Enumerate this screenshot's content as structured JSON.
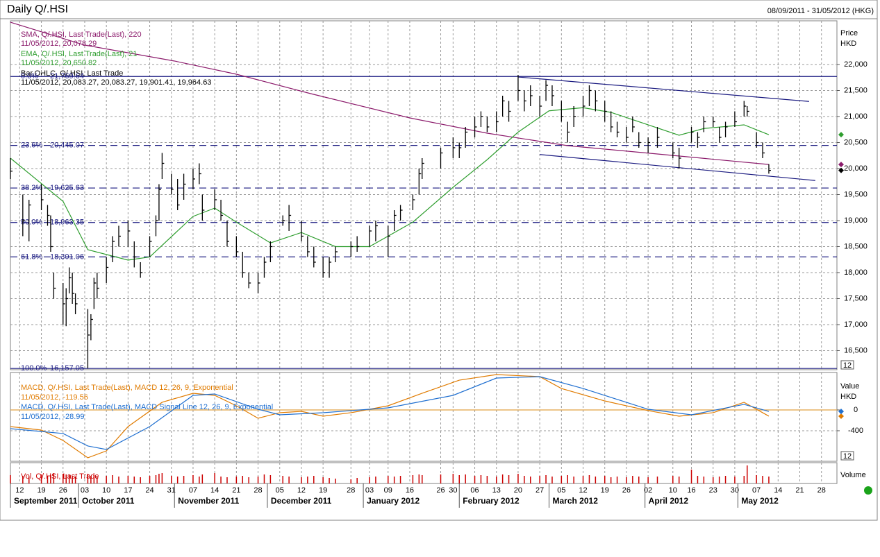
{
  "chart_data": [
    {
      "type": "ohlc",
      "title": "Daily Q/.HSI",
      "date_range": "08/09/2011 - 31/05/2012 (HKG)",
      "y_label": "Price",
      "y_unit": "HKD",
      "zoom_label": "12",
      "grid": true,
      "color": "#000000",
      "xlim": [
        "2011-09-09",
        "2012-06-02"
      ],
      "ylim": [
        16133,
        22840
      ],
      "yticks": [
        {
          "value": 16500,
          "label": "16,500"
        },
        {
          "value": 17000,
          "label": "17,000"
        },
        {
          "value": 17500,
          "label": "17,500"
        },
        {
          "value": 18000,
          "label": "18,000"
        },
        {
          "value": 18500,
          "label": "18,500"
        },
        {
          "value": 19000,
          "label": "19,000"
        },
        {
          "value": 19500,
          "label": "19,500"
        },
        {
          "value": 20000,
          "label": "20,000"
        },
        {
          "value": 20500,
          "label": "20,500"
        },
        {
          "value": 21000,
          "label": "21,000"
        },
        {
          "value": 21500,
          "label": "21,500"
        },
        {
          "value": 22000,
          "label": "22,000"
        }
      ],
      "xticks": [
        {
          "value": "2011-09-12",
          "label": "12"
        },
        {
          "value": "2011-09-19",
          "label": "19"
        },
        {
          "value": "2011-09-26",
          "label": "26"
        },
        {
          "value": "2011-10-03",
          "label": "03"
        },
        {
          "value": "2011-10-10",
          "label": "10"
        },
        {
          "value": "2011-10-17",
          "label": "17"
        },
        {
          "value": "2011-10-24",
          "label": "24"
        },
        {
          "value": "2011-10-31",
          "label": "31"
        },
        {
          "value": "2011-11-07",
          "label": "07"
        },
        {
          "value": "2011-11-14",
          "label": "14"
        },
        {
          "value": "2011-11-21",
          "label": "21"
        },
        {
          "value": "2011-11-28",
          "label": "28"
        },
        {
          "value": "2011-12-05",
          "label": "05"
        },
        {
          "value": "2011-12-12",
          "label": "12"
        },
        {
          "value": "2011-12-19",
          "label": "19"
        },
        {
          "value": "2011-12-28",
          "label": "28"
        },
        {
          "value": "2012-01-03",
          "label": "03"
        },
        {
          "value": "2012-01-09",
          "label": "09"
        },
        {
          "value": "2012-01-16",
          "label": "16"
        },
        {
          "value": "2012-01-26",
          "label": "26"
        },
        {
          "value": "2012-01-30",
          "label": "30"
        },
        {
          "value": "2012-02-06",
          "label": "06"
        },
        {
          "value": "2012-02-13",
          "label": "13"
        },
        {
          "value": "2012-02-20",
          "label": "20"
        },
        {
          "value": "2012-02-27",
          "label": "27"
        },
        {
          "value": "2012-03-05",
          "label": "05"
        },
        {
          "value": "2012-03-12",
          "label": "12"
        },
        {
          "value": "2012-03-19",
          "label": "19"
        },
        {
          "value": "2012-03-26",
          "label": "26"
        },
        {
          "value": "2012-04-02",
          "label": "02"
        },
        {
          "value": "2012-04-10",
          "label": "10"
        },
        {
          "value": "2012-04-16",
          "label": "16"
        },
        {
          "value": "2012-04-23",
          "label": "23"
        },
        {
          "value": "2012-04-30",
          "label": "30"
        },
        {
          "value": "2012-05-07",
          "label": "07"
        },
        {
          "value": "2012-05-14",
          "label": "14"
        },
        {
          "value": "2012-05-21",
          "label": "21"
        },
        {
          "value": "2012-05-28",
          "label": "28"
        }
      ],
      "months": [
        {
          "value": "2011-09",
          "label": "September 2011"
        },
        {
          "value": "2011-10",
          "label": "October 2011"
        },
        {
          "value": "2011-11",
          "label": "November 2011"
        },
        {
          "value": "2011-12",
          "label": "December 2011"
        },
        {
          "value": "2012-01",
          "label": "January 2012"
        },
        {
          "value": "2012-02",
          "label": "February 2012"
        },
        {
          "value": "2012-03",
          "label": "March 2012"
        },
        {
          "value": "2012-04",
          "label": "April 2012"
        },
        {
          "value": "2012-05",
          "label": "May 2012"
        }
      ],
      "bar_legend": {
        "name": "Bar,OHLC, Q/.HSI, Last Trade",
        "readout": "11/05/2012, 20,083.27, 20,083.27, 19,901.41, 19,964.63"
      },
      "x": [
        "2011-09-09",
        "2011-09-13",
        "2011-09-15",
        "2011-09-19",
        "2011-09-21",
        "2011-09-22",
        "2011-09-23",
        "2011-09-26",
        "2011-09-27",
        "2011-09-28",
        "2011-09-29",
        "2011-09-30",
        "2011-10-04",
        "2011-10-05",
        "2011-10-06",
        "2011-10-07",
        "2011-10-10",
        "2011-10-12",
        "2011-10-14",
        "2011-10-17",
        "2011-10-19",
        "2011-10-21",
        "2011-10-24",
        "2011-10-26",
        "2011-10-27",
        "2011-10-28",
        "2011-10-31",
        "2011-11-02",
        "2011-11-04",
        "2011-11-07",
        "2011-11-09",
        "2011-11-10",
        "2011-11-14",
        "2011-11-16",
        "2011-11-18",
        "2011-11-21",
        "2011-11-23",
        "2011-11-25",
        "2011-11-28",
        "2011-11-30",
        "2011-12-02",
        "2011-12-06",
        "2011-12-08",
        "2011-12-12",
        "2011-12-14",
        "2011-12-16",
        "2011-12-19",
        "2011-12-21",
        "2011-12-23",
        "2011-12-28",
        "2011-12-30",
        "2012-01-03",
        "2012-01-05",
        "2012-01-09",
        "2012-01-11",
        "2012-01-13",
        "2012-01-17",
        "2012-01-19",
        "2012-01-20",
        "2012-01-26",
        "2012-01-30",
        "2012-02-01",
        "2012-02-03",
        "2012-02-06",
        "2012-02-08",
        "2012-02-10",
        "2012-02-13",
        "2012-02-15",
        "2012-02-17",
        "2012-02-20",
        "2012-02-22",
        "2012-02-24",
        "2012-02-27",
        "2012-02-29",
        "2012-03-02",
        "2012-03-05",
        "2012-03-07",
        "2012-03-09",
        "2012-03-12",
        "2012-03-14",
        "2012-03-16",
        "2012-03-19",
        "2012-03-21",
        "2012-03-23",
        "2012-03-26",
        "2012-03-28",
        "2012-03-30",
        "2012-04-02",
        "2012-04-05",
        "2012-04-10",
        "2012-04-12",
        "2012-04-16",
        "2012-04-18",
        "2012-04-20",
        "2012-04-23",
        "2012-04-25",
        "2012-04-27",
        "2012-04-30",
        "2012-05-03",
        "2012-05-04",
        "2012-05-07",
        "2012-05-09",
        "2012-05-11"
      ],
      "high": [
        20200,
        19500,
        19400,
        19700,
        19300,
        19100,
        18000,
        17800,
        17700,
        18100,
        18000,
        17600,
        17300,
        17200,
        17900,
        18000,
        18300,
        18700,
        18900,
        19000,
        18600,
        18200,
        18700,
        19100,
        19700,
        20300,
        19900,
        19800,
        19900,
        20000,
        20100,
        19500,
        19600,
        19400,
        19000,
        18700,
        18400,
        18000,
        18000,
        18300,
        18600,
        19100,
        19300,
        19000,
        18700,
        18500,
        18300,
        18300,
        18500,
        18600,
        18700,
        18900,
        19000,
        18900,
        19200,
        19300,
        19500,
        20000,
        20200,
        20400,
        20600,
        20500,
        20800,
        21000,
        21100,
        21000,
        21100,
        21400,
        21300,
        21800,
        21500,
        21600,
        21400,
        21700,
        21600,
        21300,
        20900,
        21200,
        21400,
        21600,
        21500,
        21300,
        21100,
        20900,
        20800,
        21000,
        20700,
        20600,
        20800,
        20500,
        20400,
        20800,
        20700,
        21000,
        21000,
        20800,
        20900,
        21100,
        21300,
        21200,
        20700,
        20500,
        20083.27
      ],
      "low": [
        19800,
        18700,
        18600,
        19200,
        18900,
        18400,
        17500,
        17000,
        16970,
        17600,
        17400,
        17200,
        16157,
        16700,
        17300,
        17500,
        17800,
        18200,
        18500,
        18500,
        18100,
        17900,
        18300,
        18700,
        19000,
        19800,
        19500,
        19200,
        19400,
        19600,
        19700,
        19000,
        19200,
        19000,
        18500,
        18300,
        17900,
        17700,
        17600,
        17900,
        18200,
        18900,
        18800,
        18600,
        18300,
        18100,
        17900,
        17900,
        18200,
        18300,
        18400,
        18500,
        18600,
        18300,
        18800,
        19000,
        19200,
        19500,
        19800,
        20000,
        20200,
        20200,
        20400,
        20600,
        20800,
        20700,
        20700,
        21000,
        20900,
        21300,
        21100,
        21200,
        21000,
        21300,
        21200,
        20900,
        20500,
        20800,
        21000,
        21200,
        21100,
        20900,
        20700,
        20600,
        20500,
        20700,
        20400,
        20300,
        20400,
        20200,
        20000,
        20500,
        20400,
        20700,
        20800,
        20500,
        20600,
        20800,
        21000,
        21000,
        20400,
        20200,
        19901.41
      ],
      "close": [
        19950,
        19000,
        19300,
        19400,
        19100,
        18500,
        17700,
        17400,
        17500,
        17900,
        17600,
        17400,
        16800,
        17100,
        17800,
        17700,
        18100,
        18600,
        18700,
        18800,
        18300,
        18000,
        18600,
        19000,
        19600,
        20100,
        19600,
        19300,
        19700,
        19800,
        19900,
        19200,
        19400,
        19100,
        18600,
        18400,
        18000,
        17800,
        17800,
        18200,
        18500,
        19000,
        19100,
        18700,
        18400,
        18200,
        18000,
        18200,
        18400,
        18500,
        18500,
        18800,
        18900,
        18700,
        19100,
        19200,
        19400,
        19900,
        20100,
        20300,
        20400,
        20400,
        20700,
        20800,
        21000,
        20800,
        20900,
        21300,
        21100,
        21500,
        21300,
        21400,
        21200,
        21600,
        21400,
        21000,
        20700,
        21000,
        21200,
        21500,
        21300,
        21100,
        20800,
        20700,
        20600,
        20800,
        20500,
        20500,
        20600,
        20300,
        20200,
        20700,
        20600,
        20900,
        20900,
        20600,
        20800,
        20900,
        21200,
        21100,
        20500,
        20300,
        19964.63
      ],
      "lines": [
        {
          "name": "SMA, Q/.HSI, Last Trade(Last), 220",
          "readout": "11/05/2012, 20,078.29",
          "color": "#8b1a6b",
          "x": [
            "2011-09-09",
            "2011-10-03",
            "2011-11-01",
            "2011-11-21",
            "2011-12-15",
            "2012-01-16",
            "2012-02-10",
            "2012-03-07",
            "2012-04-05",
            "2012-05-11"
          ],
          "values": [
            22813,
            22373,
            22067,
            21813,
            21440,
            20973,
            20680,
            20440,
            20280,
            20078.29
          ]
        },
        {
          "name": "EMA, Q/.HSI, Last Trade(Last), 21",
          "readout": "11/05/2012, 20,650.82",
          "color": "#2f9e2f",
          "x": [
            "2011-09-09",
            "2011-09-26",
            "2011-10-04",
            "2011-10-17",
            "2011-10-24",
            "2011-11-07",
            "2011-11-14",
            "2011-11-21",
            "2011-12-02",
            "2011-12-12",
            "2011-12-23",
            "2012-01-03",
            "2012-01-17",
            "2012-01-30",
            "2012-02-10",
            "2012-02-20",
            "2012-03-01",
            "2012-03-12",
            "2012-03-21",
            "2012-04-02",
            "2012-04-12",
            "2012-04-20",
            "2012-05-03",
            "2012-05-11"
          ],
          "values": [
            20200,
            19370,
            18440,
            18240,
            18300,
            19080,
            19240,
            18970,
            18570,
            18770,
            18500,
            18500,
            18970,
            19640,
            20170,
            20700,
            21110,
            21170,
            21080,
            20840,
            20640,
            20770,
            20840,
            20650.82
          ]
        }
      ],
      "fib": {
        "color": "#1a1a80",
        "names": [
          "0.0%",
          "23.6%",
          "38.2%",
          "50.0%",
          "61.8%",
          "100.0%"
        ],
        "values": [
          21769.64,
          20445.07,
          19625.63,
          18963.35,
          18301.06,
          16157.05
        ],
        "value_labels": [
          "21,769.64",
          "20,445.07",
          "19,625.63",
          "18,963.35",
          "18,301.06",
          "16,157.05"
        ]
      },
      "trendlines": [
        {
          "x": [
            "2012-02-20",
            "2012-05-24"
          ],
          "values": [
            21760,
            21290
          ]
        },
        {
          "x": [
            "2012-02-27",
            "2012-05-26"
          ],
          "values": [
            20270,
            19770
          ]
        }
      ]
    },
    {
      "type": "line",
      "y_label": "Value",
      "y_unit": "HKD",
      "zoom_label": "12",
      "ylim": [
        -987,
        720
      ],
      "yticks": [
        0,
        -400
      ],
      "hline": {
        "value": 0,
        "color": "#e0a040"
      },
      "series": [
        {
          "name": "MACD, Q/.HSI, Last Trade(Last), MACD 12, 26, 9, Exponential",
          "readout": "11/05/2012, -119.56",
          "color": "#e07b00",
          "x": [
            "2011-09-09",
            "2011-09-19",
            "2011-09-26",
            "2011-10-04",
            "2011-10-10",
            "2011-10-17",
            "2011-10-28",
            "2011-11-07",
            "2011-11-14",
            "2011-11-21",
            "2011-11-28",
            "2011-12-05",
            "2011-12-12",
            "2011-12-19",
            "2011-12-28",
            "2012-01-09",
            "2012-01-20",
            "2012-02-01",
            "2012-02-13",
            "2012-02-27",
            "2012-03-05",
            "2012-03-19",
            "2012-04-02",
            "2012-04-12",
            "2012-04-23",
            "2012-05-03",
            "2012-05-11"
          ],
          "values": [
            -320,
            -387,
            -587,
            -920,
            -787,
            -320,
            147,
            320,
            280,
            80,
            -160,
            -53,
            -27,
            -120,
            -53,
            80,
            320,
            573,
            680,
            640,
            413,
            173,
            -13,
            -120,
            -53,
            147,
            -119.56
          ]
        },
        {
          "name": "MACD, Q/.HSI, Last Trade(Last), MACD Signal Line 12, 26, 9, Exponential",
          "readout": "11/05/2012, -28.99",
          "color": "#1f6fd0",
          "x": [
            "2011-09-09",
            "2011-09-26",
            "2011-10-04",
            "2011-10-10",
            "2011-10-24",
            "2011-11-07",
            "2011-11-14",
            "2011-11-28",
            "2011-12-05",
            "2011-12-19",
            "2012-01-09",
            "2012-01-30",
            "2012-02-13",
            "2012-02-27",
            "2012-03-12",
            "2012-04-02",
            "2012-04-16",
            "2012-05-03",
            "2012-05-11"
          ],
          "values": [
            -360,
            -453,
            -693,
            -760,
            -320,
            280,
            307,
            13,
            -93,
            -53,
            40,
            280,
            613,
            640,
            413,
            13,
            -93,
            107,
            -28.99
          ]
        }
      ]
    },
    {
      "type": "bar",
      "name": "Vol, Q/.HSI, Last Trade",
      "y_label": "Volume",
      "color": "#cc0000",
      "ylim": [
        0,
        3000
      ],
      "values": [
        1200,
        1100,
        1000,
        1300,
        1100,
        1200,
        1500,
        1400,
        1300,
        1200,
        1100,
        1000,
        1400,
        1100,
        1200,
        1000,
        1100,
        1200,
        1000,
        1100,
        1000,
        900,
        1100,
        1200,
        1400,
        1500,
        1100,
        1000,
        1100,
        1200,
        1000,
        1300,
        1500,
        1000,
        900,
        1000,
        1100,
        900,
        1000,
        1300,
        1200,
        1100,
        1000,
        900,
        1000,
        1100,
        900,
        800,
        700,
        600,
        800,
        900,
        1000,
        1100,
        1000,
        1100,
        1200,
        1300,
        1200,
        1300,
        1400,
        1200,
        1300,
        1100,
        1200,
        1100,
        1000,
        1300,
        1200,
        1400,
        1100,
        1000,
        1100,
        1200,
        1000,
        1100,
        1200,
        1000,
        1100,
        1200,
        1000,
        1100,
        900,
        1000,
        900,
        1100,
        1000,
        900,
        1000,
        1100,
        1000,
        2000,
        1100,
        1000,
        900,
        1000,
        1100,
        1000,
        1100,
        2600,
        1200,
        1100,
        1000
      ]
    }
  ]
}
